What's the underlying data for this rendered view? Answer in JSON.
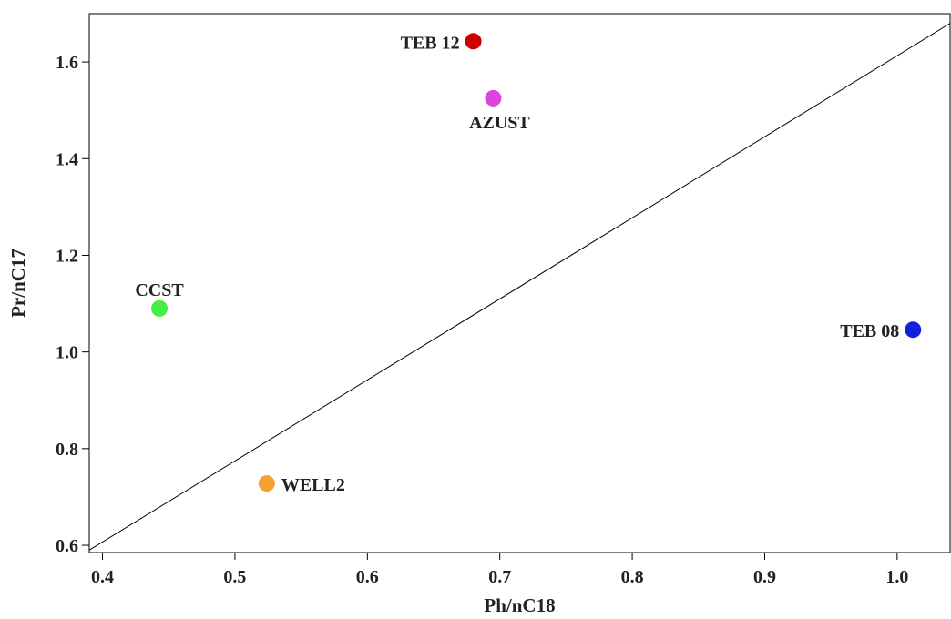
{
  "chart_data": {
    "type": "scatter",
    "title": "",
    "xlabel": "Ph/nC18",
    "ylabel": "Pr/nC17",
    "xlim": [
      0.39,
      1.04
    ],
    "ylim": [
      0.585,
      1.7
    ],
    "x_ticks": [
      0.4,
      0.5,
      0.6,
      0.7,
      0.8,
      0.9,
      1.0
    ],
    "x_tick_labels": [
      "0.4",
      "0.5",
      "0.6",
      "0.7",
      "0.8",
      "0.9",
      "1.0"
    ],
    "y_ticks": [
      0.6,
      0.8,
      1.0,
      1.2,
      1.4,
      1.6
    ],
    "y_tick_labels": [
      "0.6",
      "0.8",
      "1.0",
      "1.2",
      "1.4",
      "1.6"
    ],
    "grid": false,
    "legend": "none",
    "points": [
      {
        "label": "TEB 12",
        "x": 0.68,
        "y": 1.643,
        "color": "#cc0000",
        "label_position": "left"
      },
      {
        "label": "AZUST",
        "x": 0.695,
        "y": 1.525,
        "color": "#dd44dd",
        "label_position": "below"
      },
      {
        "label": "CCST",
        "x": 0.443,
        "y": 1.09,
        "color": "#44ee44",
        "label_position": "above"
      },
      {
        "label": "TEB 08",
        "x": 1.012,
        "y": 1.046,
        "color": "#1122dd",
        "label_position": "left"
      },
      {
        "label": "WELL2",
        "x": 0.524,
        "y": 0.728,
        "color": "#f5a030",
        "label_position": "right"
      }
    ],
    "reference_line": {
      "type": "diagonal",
      "from": [
        0.39,
        0.59
      ],
      "to": [
        1.04,
        1.68
      ],
      "color": "#000000"
    }
  }
}
